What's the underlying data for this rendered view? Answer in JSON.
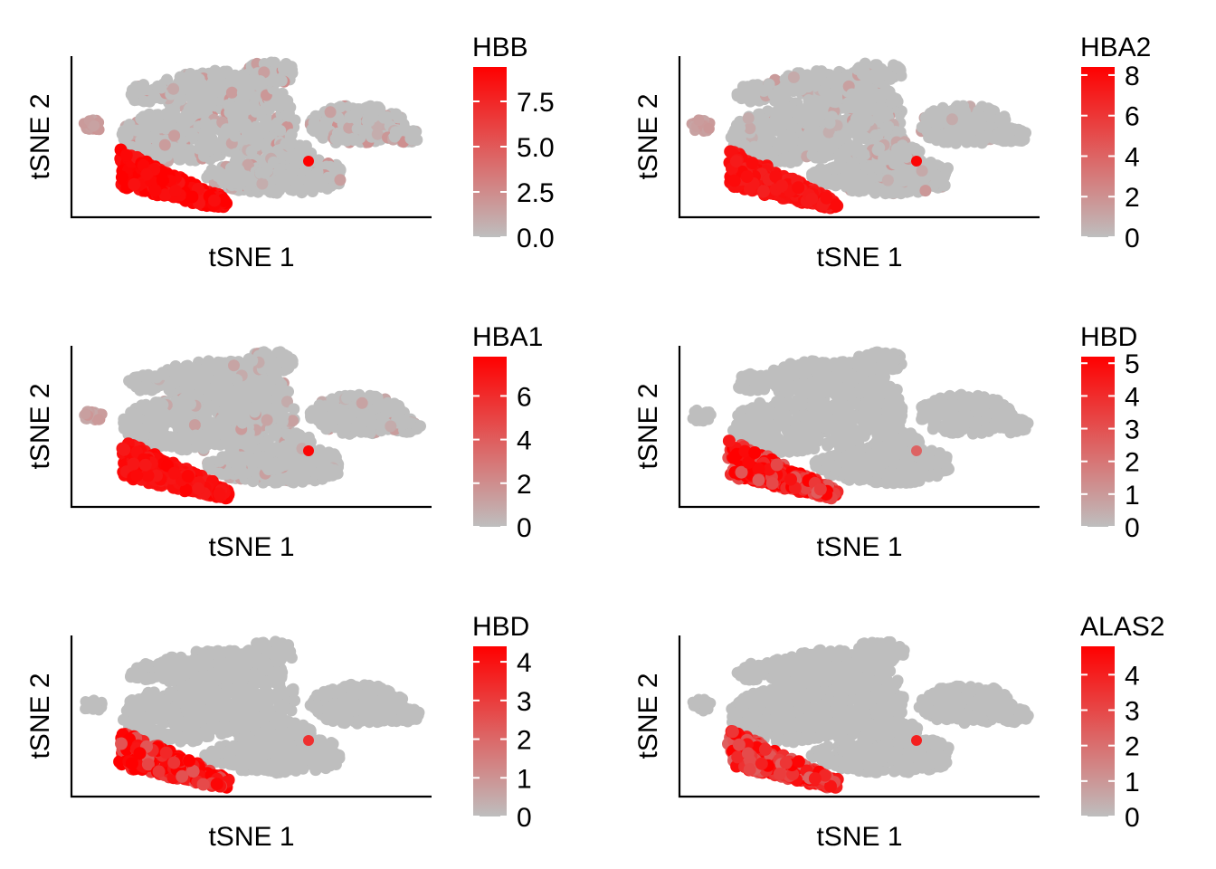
{
  "chart_data": [
    {
      "type": "scatter",
      "xlabel": "tSNE 1",
      "ylabel": "tSNE 2",
      "legend_title": "HBB",
      "legend_placement": "right",
      "color_low": "#BEBEBE",
      "color_high": "#FF0000",
      "color_range": [
        0,
        9.4
      ],
      "legend_ticks": [
        "0.0",
        "2.5",
        "5.0",
        "7.5"
      ],
      "legend_tick_values": [
        0,
        2.5,
        5.0,
        7.5
      ],
      "cluster_levels": {
        "erythroid": 9.0,
        "dot": 9.4,
        "small": 2.0,
        "scatter": 2.0
      },
      "scatter_density": 0.12
    },
    {
      "type": "scatter",
      "xlabel": "tSNE 1",
      "ylabel": "tSNE 2",
      "legend_title": "HBA2",
      "legend_placement": "right",
      "color_low": "#BEBEBE",
      "color_high": "#FF0000",
      "color_range": [
        0,
        8.4
      ],
      "legend_ticks": [
        "0",
        "2",
        "4",
        "6",
        "8"
      ],
      "legend_tick_values": [
        0,
        2,
        4,
        6,
        8
      ],
      "cluster_levels": {
        "erythroid": 7.5,
        "dot": 8.2,
        "small": 1.5,
        "scatter": 1.5
      },
      "scatter_density": 0.06
    },
    {
      "type": "scatter",
      "xlabel": "tSNE 1",
      "ylabel": "tSNE 2",
      "legend_title": "HBA1",
      "legend_placement": "right",
      "color_low": "#BEBEBE",
      "color_high": "#FF0000",
      "color_range": [
        0,
        7.8
      ],
      "legend_ticks": [
        "0",
        "2",
        "4",
        "6"
      ],
      "legend_tick_values": [
        0,
        2,
        4,
        6
      ],
      "cluster_levels": {
        "erythroid": 7.2,
        "dot": 7.6,
        "small": 1.5,
        "scatter": 1.2
      },
      "scatter_density": 0.05
    },
    {
      "type": "scatter",
      "xlabel": "tSNE 1",
      "ylabel": "tSNE 2",
      "legend_title": "HBD",
      "legend_placement": "right",
      "color_low": "#BEBEBE",
      "color_high": "#FF0000",
      "color_range": [
        0,
        5.2
      ],
      "legend_ticks": [
        "0",
        "1",
        "2",
        "3",
        "4",
        "5"
      ],
      "legend_tick_values": [
        0,
        1,
        2,
        3,
        4,
        5
      ],
      "cluster_levels": {
        "erythroid": 3.8,
        "dot": 2.5,
        "small": 0.0,
        "scatter": 0.0
      },
      "scatter_density": 0.01
    },
    {
      "type": "scatter",
      "xlabel": "tSNE 1",
      "ylabel": "tSNE 2",
      "legend_title": "HBD",
      "legend_placement": "right",
      "color_low": "#BEBEBE",
      "color_high": "#FF0000",
      "color_range": [
        0,
        4.4
      ],
      "legend_ticks": [
        "0",
        "1",
        "2",
        "3",
        "4"
      ],
      "legend_tick_values": [
        0,
        1,
        2,
        3,
        4
      ],
      "cluster_levels": {
        "erythroid": 3.3,
        "dot": 3.3,
        "small": 0.0,
        "scatter": 0.0
      },
      "scatter_density": 0.01
    },
    {
      "type": "scatter",
      "xlabel": "tSNE 1",
      "ylabel": "tSNE 2",
      "legend_title": "ALAS2",
      "legend_placement": "right",
      "color_low": "#BEBEBE",
      "color_high": "#FF0000",
      "color_range": [
        0,
        4.8
      ],
      "legend_ticks": [
        "0",
        "1",
        "2",
        "3",
        "4"
      ],
      "legend_tick_values": [
        0,
        1,
        2,
        3,
        4
      ],
      "cluster_levels": {
        "erythroid": 3.2,
        "dot": 4.0,
        "small": 0.0,
        "scatter": 0.0
      },
      "scatter_density": 0.01
    }
  ]
}
